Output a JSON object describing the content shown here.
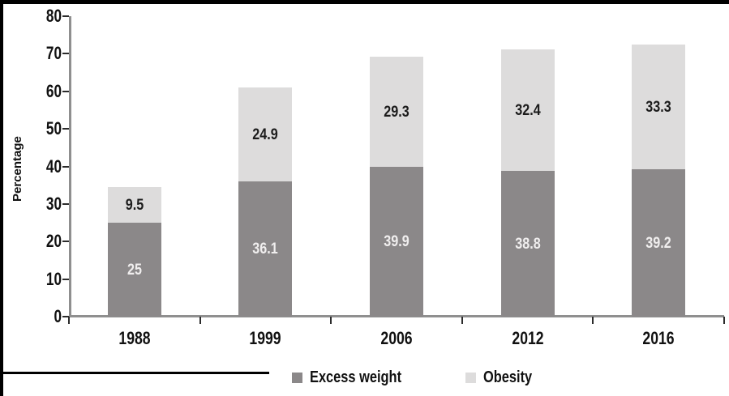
{
  "chart_data": {
    "type": "bar",
    "subtype": "stacked-vertical",
    "title": "",
    "categories": [
      "1988",
      "1999",
      "2006",
      "2012",
      "2016"
    ],
    "series": [
      {
        "name": "Excess weight",
        "color": "#8b8889",
        "label_color": "#f0eeee",
        "values": [
          25,
          36.1,
          39.9,
          38.8,
          39.2
        ]
      },
      {
        "name": "Obesity",
        "color": "#dddcdc",
        "label_color": "#1c1c1c",
        "values": [
          9.5,
          24.9,
          29.3,
          32.4,
          33.3
        ]
      }
    ],
    "xlabel": "",
    "ylabel": "Percentage",
    "ylim": [
      0,
      80
    ],
    "yticks": [
      0,
      10,
      20,
      30,
      40,
      50,
      60,
      70,
      80
    ],
    "grid": false,
    "legend_position": "bottom"
  },
  "colors": {
    "axis": "#8f8f8f",
    "tick": "#2b2b2b",
    "frame": "#000000",
    "background": "#ffffff"
  }
}
